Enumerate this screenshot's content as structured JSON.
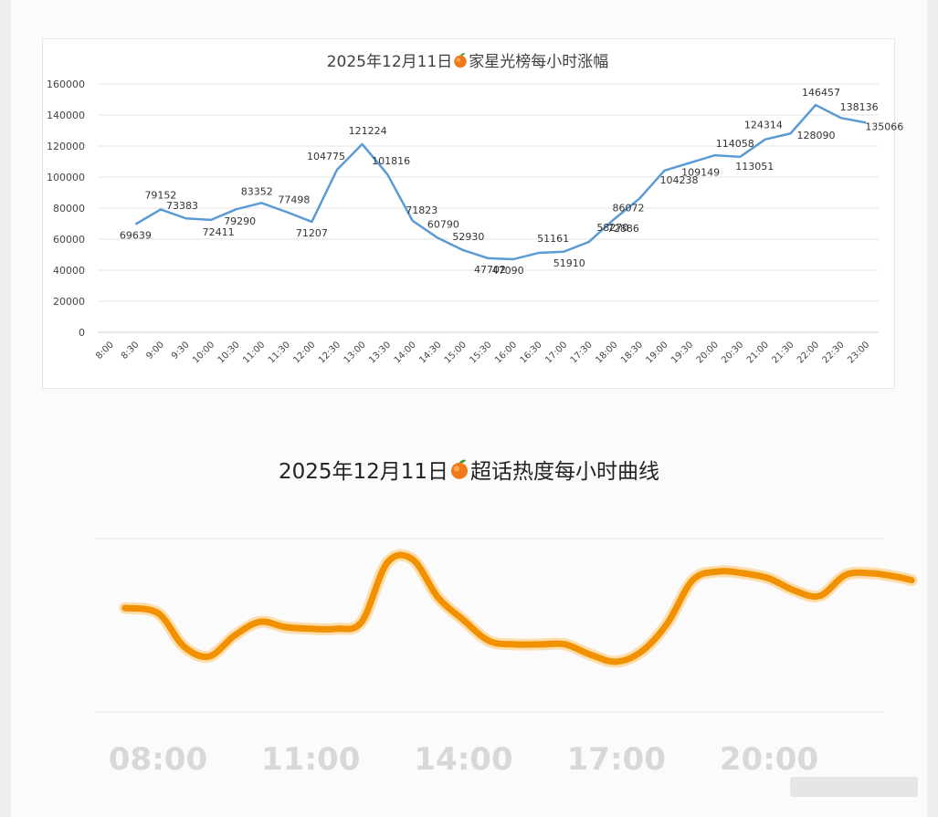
{
  "chart_data": [
    {
      "type": "line",
      "title_date": "2025年12月11日",
      "title_icon": "peach-icon",
      "title_rest": "家星光榜每小时涨幅",
      "categories": [
        "8:00",
        "8:30",
        "9:00",
        "9:30",
        "10:00",
        "10:30",
        "11:00",
        "11:30",
        "12:00",
        "12:30",
        "13:00",
        "13:30",
        "14:00",
        "14:30",
        "15:00",
        "15:30",
        "16:00",
        "16:30",
        "17:00",
        "17:30",
        "18:00",
        "18:30",
        "19:00",
        "19:30",
        "20:00",
        "20:30",
        "21:00",
        "21:30",
        "22:00",
        "22:30",
        "23:00"
      ],
      "series": [
        {
          "points": [
            {
              "x": "8:30",
              "y": 69639,
              "label": "69639"
            },
            {
              "x": "9:00",
              "y": 79152,
              "label": "79152"
            },
            {
              "x": "9:30",
              "y": 73383,
              "label": "73383"
            },
            {
              "x": "10:00",
              "y": 72411,
              "label": "72411"
            },
            {
              "x": "10:30",
              "y": 79290,
              "label": "79290"
            },
            {
              "x": "11:00",
              "y": 83352,
              "label": "83352"
            },
            {
              "x": "11:30",
              "y": 77498,
              "label": "77498"
            },
            {
              "x": "12:00",
              "y": 71207,
              "label": "71207"
            },
            {
              "x": "12:30",
              "y": 104775,
              "label": "104775"
            },
            {
              "x": "13:00",
              "y": 121224,
              "label": "121224"
            },
            {
              "x": "13:30",
              "y": 101816,
              "label": "101816"
            },
            {
              "x": "14:00",
              "y": 71823,
              "label": "71823"
            },
            {
              "x": "14:30",
              "y": 60790,
              "label": "60790"
            },
            {
              "x": "15:00",
              "y": 52930,
              "label": "52930"
            },
            {
              "x": "15:30",
              "y": 47702,
              "label": "47702"
            },
            {
              "x": "16:00",
              "y": 47090,
              "label": "47090"
            },
            {
              "x": "16:30",
              "y": 51161,
              "label": "51161"
            },
            {
              "x": "17:00",
              "y": 51910,
              "label": "51910"
            },
            {
              "x": "17:30",
              "y": 58270,
              "label": "58270"
            },
            {
              "x": "18:00",
              "y": 72886,
              "label": "72886"
            },
            {
              "x": "18:30",
              "y": 86072,
              "label": "86072"
            },
            {
              "x": "19:00",
              "y": 104238,
              "label": "104238"
            },
            {
              "x": "19:30",
              "y": 109149,
              "label": "109149"
            },
            {
              "x": "20:00",
              "y": 114058,
              "label": "114058"
            },
            {
              "x": "20:30",
              "y": 113051,
              "label": "113051"
            },
            {
              "x": "21:00",
              "y": 124314,
              "label": "124314"
            },
            {
              "x": "21:30",
              "y": 128090,
              "label": "128090"
            },
            {
              "x": "22:00",
              "y": 146457,
              "label": "146457"
            },
            {
              "x": "22:30",
              "y": 138136,
              "label": "138136"
            },
            {
              "x": "23:00",
              "y": 135066,
              "label": "135066"
            }
          ]
        }
      ],
      "ylim": [
        0,
        160000
      ],
      "yticks": [
        0,
        20000,
        40000,
        60000,
        80000,
        100000,
        120000,
        140000,
        160000
      ],
      "grid": true,
      "line_color": "#5b9bd5"
    },
    {
      "type": "line",
      "title_date": "2025年12月11日",
      "title_icon": "peach-icon",
      "title_rest": "超话热度每小时曲线",
      "xticks": [
        "08:00",
        "11:00",
        "14:00",
        "17:00",
        "20:00"
      ],
      "series": [
        {
          "points": [
            {
              "x": 7.35,
              "y": 0.6
            },
            {
              "x": 8.0,
              "y": 0.57
            },
            {
              "x": 8.5,
              "y": 0.38
            },
            {
              "x": 9.0,
              "y": 0.32
            },
            {
              "x": 9.5,
              "y": 0.44
            },
            {
              "x": 10.0,
              "y": 0.52
            },
            {
              "x": 10.5,
              "y": 0.49
            },
            {
              "x": 11.0,
              "y": 0.48
            },
            {
              "x": 11.5,
              "y": 0.48
            },
            {
              "x": 12.0,
              "y": 0.52
            },
            {
              "x": 12.5,
              "y": 0.86
            },
            {
              "x": 13.0,
              "y": 0.88
            },
            {
              "x": 13.5,
              "y": 0.66
            },
            {
              "x": 14.0,
              "y": 0.53
            },
            {
              "x": 14.5,
              "y": 0.41
            },
            {
              "x": 15.0,
              "y": 0.39
            },
            {
              "x": 15.5,
              "y": 0.39
            },
            {
              "x": 16.0,
              "y": 0.39
            },
            {
              "x": 16.5,
              "y": 0.33
            },
            {
              "x": 17.0,
              "y": 0.29
            },
            {
              "x": 17.5,
              "y": 0.35
            },
            {
              "x": 18.0,
              "y": 0.51
            },
            {
              "x": 18.5,
              "y": 0.76
            },
            {
              "x": 19.0,
              "y": 0.81
            },
            {
              "x": 19.5,
              "y": 0.8
            },
            {
              "x": 20.0,
              "y": 0.77
            },
            {
              "x": 20.5,
              "y": 0.7
            },
            {
              "x": 21.0,
              "y": 0.67
            },
            {
              "x": 21.5,
              "y": 0.79
            },
            {
              "x": 22.0,
              "y": 0.8
            },
            {
              "x": 22.5,
              "y": 0.78
            },
            {
              "x": 22.8,
              "y": 0.76
            }
          ]
        }
      ],
      "grid": true,
      "line_color": "#f29100"
    }
  ]
}
